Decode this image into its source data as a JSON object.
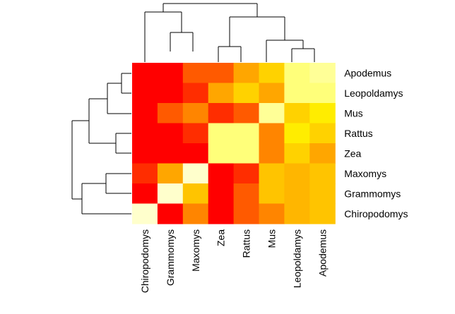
{
  "chart_data": {
    "type": "heatmap",
    "title": "",
    "xlabel": "",
    "ylabel": "",
    "columns": [
      "Chiropodomys",
      "Grammomys",
      "Maxomys",
      "Zea",
      "Rattus",
      "Mus",
      "Leopoldamys",
      "Apodemus"
    ],
    "rows": [
      "Apodemus",
      "Leopoldamys",
      "Mus",
      "Rattus",
      "Zea",
      "Maxomys",
      "Grammomys",
      "Chiropodomys"
    ],
    "color_scale": {
      "low": "#ff0000",
      "high": "#ffffcc",
      "stops": [
        "#ff0000",
        "#ff4000",
        "#ff8000",
        "#ffb000",
        "#ffd800",
        "#ffff00",
        "#ffff80",
        "#ffffcc"
      ]
    },
    "values": [
      [
        0.0,
        0.0,
        0.2,
        0.2,
        0.4,
        0.55,
        0.85,
        0.9
      ],
      [
        0.0,
        0.0,
        0.1,
        0.4,
        0.55,
        0.4,
        0.85,
        0.85
      ],
      [
        0.0,
        0.2,
        0.3,
        0.1,
        0.2,
        0.9,
        0.55,
        0.65
      ],
      [
        0.0,
        0.0,
        0.1,
        0.85,
        0.85,
        0.3,
        0.65,
        0.55
      ],
      [
        0.0,
        0.0,
        0.0,
        0.85,
        0.85,
        0.3,
        0.55,
        0.4
      ],
      [
        0.1,
        0.4,
        1.0,
        0.0,
        0.1,
        0.5,
        0.45,
        0.5
      ],
      [
        0.0,
        1.0,
        0.5,
        0.0,
        0.2,
        0.5,
        0.45,
        0.5
      ],
      [
        1.0,
        0.0,
        0.3,
        0.0,
        0.2,
        0.3,
        0.45,
        0.5
      ]
    ],
    "legend": "none",
    "grid": false
  }
}
